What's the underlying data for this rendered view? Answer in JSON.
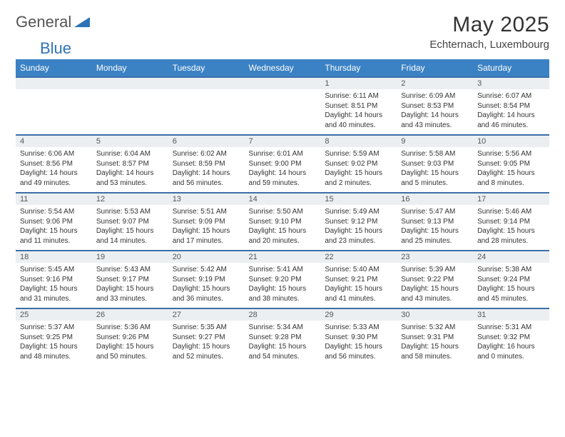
{
  "brand": {
    "part1": "General",
    "part2": "Blue"
  },
  "colors": {
    "header_bg": "#3b82c4",
    "header_text": "#ffffff",
    "row_border": "#3b6fa8",
    "daynum_bg": "#eceff2",
    "text": "#333333",
    "brand_gray": "#555555",
    "brand_blue": "#2e73b8"
  },
  "title": "May 2025",
  "location": "Echternach, Luxembourg",
  "weekdays": [
    "Sunday",
    "Monday",
    "Tuesday",
    "Wednesday",
    "Thursday",
    "Friday",
    "Saturday"
  ],
  "weeks": [
    [
      {
        "day": "",
        "lines": []
      },
      {
        "day": "",
        "lines": []
      },
      {
        "day": "",
        "lines": []
      },
      {
        "day": "",
        "lines": []
      },
      {
        "day": "1",
        "lines": [
          "Sunrise: 6:11 AM",
          "Sunset: 8:51 PM",
          "Daylight: 14 hours",
          "and 40 minutes."
        ]
      },
      {
        "day": "2",
        "lines": [
          "Sunrise: 6:09 AM",
          "Sunset: 8:53 PM",
          "Daylight: 14 hours",
          "and 43 minutes."
        ]
      },
      {
        "day": "3",
        "lines": [
          "Sunrise: 6:07 AM",
          "Sunset: 8:54 PM",
          "Daylight: 14 hours",
          "and 46 minutes."
        ]
      }
    ],
    [
      {
        "day": "4",
        "lines": [
          "Sunrise: 6:06 AM",
          "Sunset: 8:56 PM",
          "Daylight: 14 hours",
          "and 49 minutes."
        ]
      },
      {
        "day": "5",
        "lines": [
          "Sunrise: 6:04 AM",
          "Sunset: 8:57 PM",
          "Daylight: 14 hours",
          "and 53 minutes."
        ]
      },
      {
        "day": "6",
        "lines": [
          "Sunrise: 6:02 AM",
          "Sunset: 8:59 PM",
          "Daylight: 14 hours",
          "and 56 minutes."
        ]
      },
      {
        "day": "7",
        "lines": [
          "Sunrise: 6:01 AM",
          "Sunset: 9:00 PM",
          "Daylight: 14 hours",
          "and 59 minutes."
        ]
      },
      {
        "day": "8",
        "lines": [
          "Sunrise: 5:59 AM",
          "Sunset: 9:02 PM",
          "Daylight: 15 hours",
          "and 2 minutes."
        ]
      },
      {
        "day": "9",
        "lines": [
          "Sunrise: 5:58 AM",
          "Sunset: 9:03 PM",
          "Daylight: 15 hours",
          "and 5 minutes."
        ]
      },
      {
        "day": "10",
        "lines": [
          "Sunrise: 5:56 AM",
          "Sunset: 9:05 PM",
          "Daylight: 15 hours",
          "and 8 minutes."
        ]
      }
    ],
    [
      {
        "day": "11",
        "lines": [
          "Sunrise: 5:54 AM",
          "Sunset: 9:06 PM",
          "Daylight: 15 hours",
          "and 11 minutes."
        ]
      },
      {
        "day": "12",
        "lines": [
          "Sunrise: 5:53 AM",
          "Sunset: 9:07 PM",
          "Daylight: 15 hours",
          "and 14 minutes."
        ]
      },
      {
        "day": "13",
        "lines": [
          "Sunrise: 5:51 AM",
          "Sunset: 9:09 PM",
          "Daylight: 15 hours",
          "and 17 minutes."
        ]
      },
      {
        "day": "14",
        "lines": [
          "Sunrise: 5:50 AM",
          "Sunset: 9:10 PM",
          "Daylight: 15 hours",
          "and 20 minutes."
        ]
      },
      {
        "day": "15",
        "lines": [
          "Sunrise: 5:49 AM",
          "Sunset: 9:12 PM",
          "Daylight: 15 hours",
          "and 23 minutes."
        ]
      },
      {
        "day": "16",
        "lines": [
          "Sunrise: 5:47 AM",
          "Sunset: 9:13 PM",
          "Daylight: 15 hours",
          "and 25 minutes."
        ]
      },
      {
        "day": "17",
        "lines": [
          "Sunrise: 5:46 AM",
          "Sunset: 9:14 PM",
          "Daylight: 15 hours",
          "and 28 minutes."
        ]
      }
    ],
    [
      {
        "day": "18",
        "lines": [
          "Sunrise: 5:45 AM",
          "Sunset: 9:16 PM",
          "Daylight: 15 hours",
          "and 31 minutes."
        ]
      },
      {
        "day": "19",
        "lines": [
          "Sunrise: 5:43 AM",
          "Sunset: 9:17 PM",
          "Daylight: 15 hours",
          "and 33 minutes."
        ]
      },
      {
        "day": "20",
        "lines": [
          "Sunrise: 5:42 AM",
          "Sunset: 9:19 PM",
          "Daylight: 15 hours",
          "and 36 minutes."
        ]
      },
      {
        "day": "21",
        "lines": [
          "Sunrise: 5:41 AM",
          "Sunset: 9:20 PM",
          "Daylight: 15 hours",
          "and 38 minutes."
        ]
      },
      {
        "day": "22",
        "lines": [
          "Sunrise: 5:40 AM",
          "Sunset: 9:21 PM",
          "Daylight: 15 hours",
          "and 41 minutes."
        ]
      },
      {
        "day": "23",
        "lines": [
          "Sunrise: 5:39 AM",
          "Sunset: 9:22 PM",
          "Daylight: 15 hours",
          "and 43 minutes."
        ]
      },
      {
        "day": "24",
        "lines": [
          "Sunrise: 5:38 AM",
          "Sunset: 9:24 PM",
          "Daylight: 15 hours",
          "and 45 minutes."
        ]
      }
    ],
    [
      {
        "day": "25",
        "lines": [
          "Sunrise: 5:37 AM",
          "Sunset: 9:25 PM",
          "Daylight: 15 hours",
          "and 48 minutes."
        ]
      },
      {
        "day": "26",
        "lines": [
          "Sunrise: 5:36 AM",
          "Sunset: 9:26 PM",
          "Daylight: 15 hours",
          "and 50 minutes."
        ]
      },
      {
        "day": "27",
        "lines": [
          "Sunrise: 5:35 AM",
          "Sunset: 9:27 PM",
          "Daylight: 15 hours",
          "and 52 minutes."
        ]
      },
      {
        "day": "28",
        "lines": [
          "Sunrise: 5:34 AM",
          "Sunset: 9:28 PM",
          "Daylight: 15 hours",
          "and 54 minutes."
        ]
      },
      {
        "day": "29",
        "lines": [
          "Sunrise: 5:33 AM",
          "Sunset: 9:30 PM",
          "Daylight: 15 hours",
          "and 56 minutes."
        ]
      },
      {
        "day": "30",
        "lines": [
          "Sunrise: 5:32 AM",
          "Sunset: 9:31 PM",
          "Daylight: 15 hours",
          "and 58 minutes."
        ]
      },
      {
        "day": "31",
        "lines": [
          "Sunrise: 5:31 AM",
          "Sunset: 9:32 PM",
          "Daylight: 16 hours",
          "and 0 minutes."
        ]
      }
    ]
  ]
}
